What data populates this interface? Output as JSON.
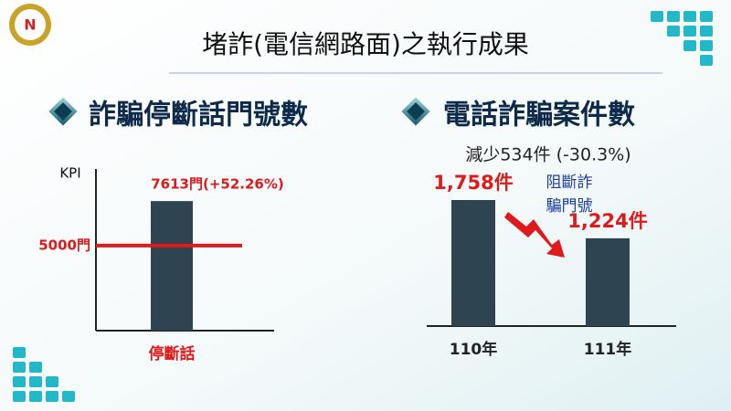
{
  "title": "堵詐(電信網路面)之執行成果",
  "chart_data": [
    {
      "type": "bar",
      "title": "詐騙停斷話門號數",
      "y_label": "KPI",
      "categories": [
        "停斷話"
      ],
      "values": [
        7613
      ],
      "value_labels": [
        "7613門(+52.26%)"
      ],
      "color": "#2e4450",
      "label_color": "#e0191b",
      "ylim": [
        0,
        9500
      ],
      "reference_line": {
        "value": 5000,
        "label": "5000門",
        "color": "#e0191b"
      }
    },
    {
      "type": "bar",
      "title": "電話詐騙案件數",
      "subtitle": "減少534件 (-30.3%)",
      "annotation": [
        "阻斷詐",
        "騙門號"
      ],
      "categories": [
        "110年",
        "111年"
      ],
      "values": [
        1758,
        1224
      ],
      "value_labels": [
        "1,758件",
        "1,224件"
      ],
      "color": "#2e4450",
      "label_color": "#e0191b",
      "ylim": [
        0,
        2000
      ]
    }
  ]
}
